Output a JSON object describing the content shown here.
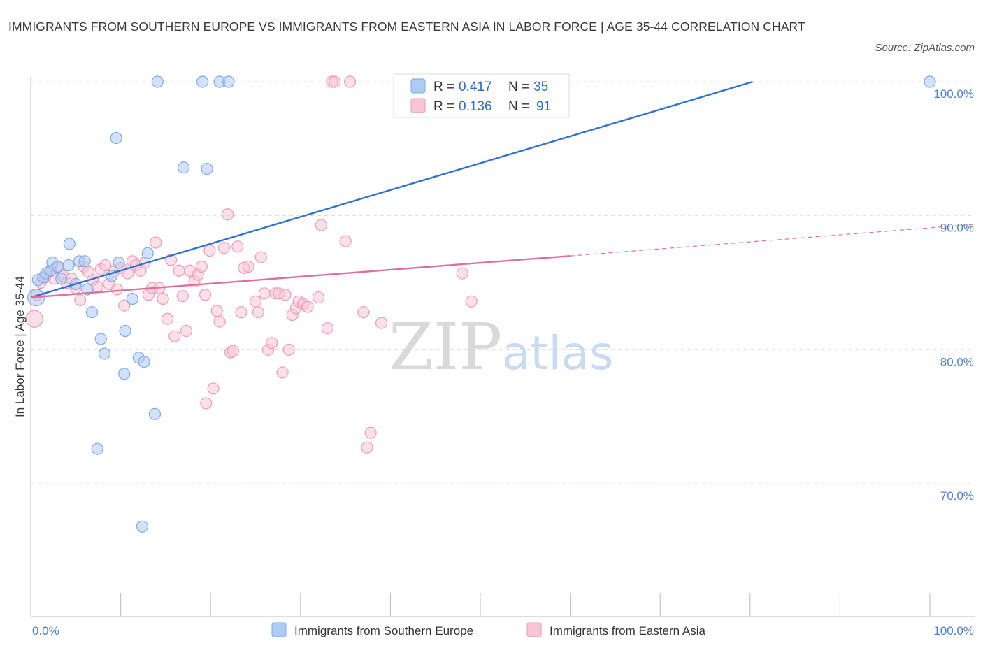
{
  "header": {
    "title": "IMMIGRANTS FROM SOUTHERN EUROPE VS IMMIGRANTS FROM EASTERN ASIA IN LABOR FORCE | AGE 35-44 CORRELATION CHART",
    "source": "Source: ZipAtlas.com"
  },
  "watermark": {
    "zip": "ZIP",
    "atlas": "atlas"
  },
  "colors": {
    "blue": "#7aaae8",
    "blue_fill": "#aecbf3",
    "blue_line": "#2f72d0",
    "pink": "#ef9ab6",
    "pink_fill": "#f7c6d6",
    "pink_line": "#e0709a",
    "grid": "#dddddd",
    "axis_text": "#4a7fd1"
  },
  "chart_data": {
    "type": "scatter",
    "title": "IMMIGRANTS FROM SOUTHERN EUROPE VS IMMIGRANTS FROM EASTERN ASIA IN LABOR FORCE | AGE 35-44 CORRELATION CHART",
    "xlabel": "",
    "ylabel": "In Labor Force | Age 35-44",
    "xlim": [
      0,
      100
    ],
    "ylim": [
      60,
      100
    ],
    "x_tick_labels": [
      "0.0%",
      "100.0%"
    ],
    "y_ticks": [
      100,
      90,
      80,
      70
    ],
    "y_tick_labels": [
      "100.0%",
      "90.0%",
      "80.0%",
      "70.0%"
    ],
    "grid": true,
    "series": [
      {
        "name": "Immigrants from Southern Europe",
        "color": "blue",
        "R": "0.417",
        "N": "35",
        "trend": {
          "x0": 0,
          "y0": 83.9,
          "x1": 80.3,
          "y1": 100.0,
          "dashed_to": null
        },
        "points": [
          [
            0.6,
            83.9,
            2
          ],
          [
            0.8,
            85.2,
            1
          ],
          [
            1.4,
            85.4,
            1
          ],
          [
            1.7,
            85.7,
            1
          ],
          [
            2.2,
            85.9,
            1
          ],
          [
            2.4,
            86.5,
            1
          ],
          [
            3.0,
            86.2,
            1
          ],
          [
            3.4,
            85.3,
            1
          ],
          [
            4.2,
            86.3,
            1
          ],
          [
            4.3,
            87.9,
            1
          ],
          [
            5.0,
            84.9,
            1
          ],
          [
            5.4,
            86.6,
            1
          ],
          [
            6.0,
            86.6,
            1
          ],
          [
            6.3,
            84.5,
            1
          ],
          [
            6.8,
            82.8,
            1
          ],
          [
            7.4,
            72.6,
            1
          ],
          [
            7.8,
            80.8,
            1
          ],
          [
            8.2,
            79.7,
            1
          ],
          [
            9.0,
            85.5,
            1
          ],
          [
            9.5,
            95.8,
            1
          ],
          [
            9.8,
            86.5,
            1
          ],
          [
            10.5,
            81.4,
            1
          ],
          [
            10.4,
            78.2,
            1
          ],
          [
            11.3,
            83.8,
            1
          ],
          [
            12.0,
            79.4,
            1
          ],
          [
            12.6,
            79.1,
            1
          ],
          [
            13.0,
            87.2,
            1
          ],
          [
            13.8,
            75.2,
            1
          ],
          [
            12.4,
            66.8,
            1
          ],
          [
            14.1,
            100.0,
            1
          ],
          [
            17.0,
            93.6,
            1
          ],
          [
            19.1,
            100.0,
            1
          ],
          [
            19.6,
            93.5,
            1
          ],
          [
            21.0,
            100.0,
            1
          ],
          [
            22.0,
            100.0,
            1
          ],
          [
            100.0,
            100.0,
            1
          ]
        ]
      },
      {
        "name": "Immigrants from Eastern Asia",
        "color": "pink",
        "R": "0.136",
        "N": "91",
        "trend": {
          "x0": 0,
          "y0": 83.9,
          "x1": 60.0,
          "y1": 87.0,
          "dashed_to": [
            100.0,
            89.2
          ]
        },
        "points": [
          [
            0.4,
            82.3,
            2
          ],
          [
            0.7,
            84.1,
            1
          ],
          [
            1.1,
            85.0,
            1
          ],
          [
            1.6,
            85.4,
            1
          ],
          [
            2.1,
            85.8,
            1
          ],
          [
            2.6,
            85.3,
            1
          ],
          [
            3.0,
            86.1,
            1
          ],
          [
            3.6,
            85.5,
            1
          ],
          [
            4.0,
            85.0,
            1
          ],
          [
            4.5,
            85.3,
            1
          ],
          [
            5.0,
            84.6,
            1
          ],
          [
            5.5,
            83.7,
            1
          ],
          [
            5.9,
            86.2,
            1
          ],
          [
            6.4,
            85.8,
            1
          ],
          [
            6.9,
            85.2,
            1
          ],
          [
            7.4,
            84.7,
            1
          ],
          [
            7.8,
            86.0,
            1
          ],
          [
            8.3,
            86.3,
            1
          ],
          [
            8.7,
            84.9,
            1
          ],
          [
            9.2,
            85.8,
            1
          ],
          [
            9.6,
            84.5,
            1
          ],
          [
            10.0,
            86.1,
            1
          ],
          [
            10.4,
            83.3,
            1
          ],
          [
            10.8,
            85.7,
            1
          ],
          [
            11.3,
            86.6,
            1
          ],
          [
            11.7,
            86.3,
            1
          ],
          [
            12.2,
            85.9,
            1
          ],
          [
            12.7,
            86.5,
            1
          ],
          [
            13.1,
            84.1,
            1
          ],
          [
            13.5,
            84.6,
            1
          ],
          [
            13.9,
            88.0,
            1
          ],
          [
            14.3,
            84.6,
            1
          ],
          [
            14.7,
            83.8,
            1
          ],
          [
            15.2,
            82.3,
            1
          ],
          [
            15.6,
            86.7,
            1
          ],
          [
            16.0,
            81.0,
            1
          ],
          [
            16.5,
            85.9,
            1
          ],
          [
            16.9,
            84.0,
            1
          ],
          [
            17.3,
            81.4,
            1
          ],
          [
            17.7,
            85.9,
            1
          ],
          [
            18.2,
            85.1,
            1
          ],
          [
            18.6,
            85.6,
            1
          ],
          [
            19.0,
            86.2,
            1
          ],
          [
            19.4,
            84.1,
            1
          ],
          [
            19.5,
            76.0,
            1
          ],
          [
            19.9,
            87.4,
            1
          ],
          [
            20.3,
            77.1,
            1
          ],
          [
            20.7,
            82.9,
            1
          ],
          [
            21.0,
            82.1,
            1
          ],
          [
            21.5,
            87.6,
            1
          ],
          [
            21.9,
            90.1,
            1
          ],
          [
            22.2,
            79.8,
            1
          ],
          [
            22.5,
            79.9,
            1
          ],
          [
            23.0,
            87.7,
            1
          ],
          [
            23.4,
            82.8,
            1
          ],
          [
            23.7,
            86.1,
            1
          ],
          [
            24.2,
            86.2,
            1
          ],
          [
            25.0,
            83.6,
            1
          ],
          [
            25.3,
            82.8,
            1
          ],
          [
            25.6,
            86.9,
            1
          ],
          [
            26.0,
            84.2,
            1
          ],
          [
            26.4,
            80.0,
            1
          ],
          [
            26.8,
            80.5,
            1
          ],
          [
            27.2,
            84.2,
            1
          ],
          [
            27.6,
            84.2,
            1
          ],
          [
            28.0,
            78.3,
            1
          ],
          [
            28.3,
            84.1,
            1
          ],
          [
            28.7,
            80.0,
            1
          ],
          [
            29.1,
            82.6,
            1
          ],
          [
            29.5,
            83.1,
            1
          ],
          [
            29.8,
            83.6,
            1
          ],
          [
            30.3,
            83.4,
            1
          ],
          [
            30.8,
            83.2,
            1
          ],
          [
            32.0,
            83.9,
            1
          ],
          [
            32.3,
            89.3,
            1
          ],
          [
            33.0,
            81.6,
            1
          ],
          [
            33.5,
            100.0,
            1
          ],
          [
            33.8,
            100.0,
            1
          ],
          [
            35.0,
            88.1,
            1
          ],
          [
            35.5,
            100.0,
            1
          ],
          [
            37.0,
            82.8,
            1
          ],
          [
            37.4,
            72.7,
            1
          ],
          [
            37.8,
            73.8,
            1
          ],
          [
            39.0,
            82.0,
            1
          ],
          [
            43.5,
            100.0,
            1
          ],
          [
            44.0,
            100.0,
            1
          ],
          [
            45.3,
            100.0,
            1
          ],
          [
            48.0,
            85.7,
            1
          ],
          [
            49.0,
            83.6,
            1
          ]
        ]
      }
    ]
  },
  "legend": {
    "items": [
      {
        "label": "Immigrants from Southern Europe"
      },
      {
        "label": "Immigrants from Eastern Asia"
      }
    ]
  },
  "stats_box": {
    "r_label": "R =",
    "n_label": "N =",
    "rows": [
      {
        "r": "0.417",
        "n": "35"
      },
      {
        "r": "0.136",
        "n": "91"
      }
    ]
  }
}
